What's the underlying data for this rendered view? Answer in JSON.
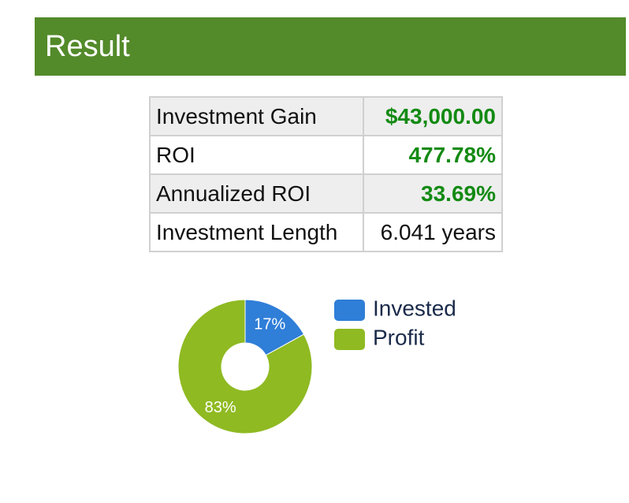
{
  "header": {
    "title": "Result"
  },
  "table": {
    "rows": [
      [
        "Investment Gain",
        "$43,000.00"
      ],
      [
        "ROI",
        "477.78%"
      ],
      [
        "Annualized ROI",
        "33.69%"
      ],
      [
        "Investment Length",
        "6.041 years"
      ]
    ]
  },
  "chart_data": {
    "type": "pie",
    "donut": true,
    "categories": [
      "Invested",
      "Profit"
    ],
    "values": [
      17,
      83
    ],
    "value_labels": [
      "17%",
      "83%"
    ],
    "colors": [
      "#2f7ed8",
      "#8fba22"
    ]
  }
}
